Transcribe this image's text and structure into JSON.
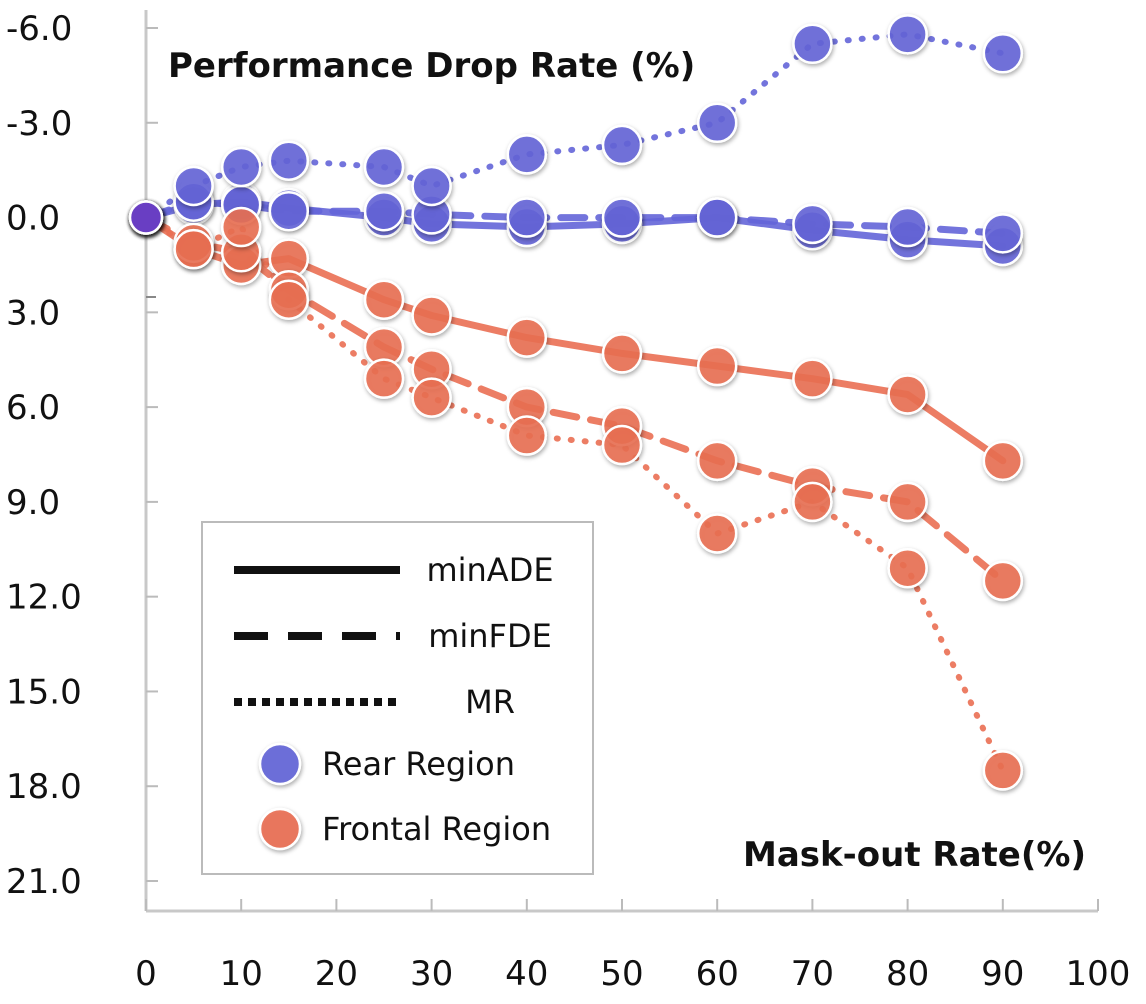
{
  "chart_data": {
    "type": "line",
    "title": "Performance Drop Rate (%)",
    "xlabel": "Mask-out Rate(%)",
    "ylabel": "Performance Drop Rate (%)",
    "xlim": [
      0,
      100
    ],
    "ylim": [
      21.0,
      -6.0
    ],
    "x_ticks": [
      "0",
      "10",
      "20",
      "30",
      "40",
      "50",
      "60",
      "70",
      "80",
      "90",
      "100"
    ],
    "y_ticks": [
      "-6.0",
      "-3.0",
      "0.0",
      "3.0",
      "6.0",
      "9.0",
      "12.0",
      "15.0",
      "18.0",
      "21.0"
    ],
    "x": [
      0,
      5,
      10,
      15,
      25,
      30,
      40,
      50,
      60,
      70,
      80,
      90
    ],
    "series": [
      {
        "name": "Rear Region minADE",
        "region": "Rear Region",
        "metric": "minADE",
        "style": "solid",
        "color": "#6465d8",
        "values": [
          0.0,
          -0.4,
          -0.5,
          -0.3,
          0.0,
          0.2,
          0.3,
          0.2,
          0.0,
          0.4,
          0.7,
          0.9
        ]
      },
      {
        "name": "Rear Region minFDE",
        "region": "Rear Region",
        "metric": "minFDE",
        "style": "dashed",
        "color": "#6465d8",
        "values": [
          0.0,
          -0.5,
          -0.4,
          -0.2,
          -0.2,
          -0.1,
          0.0,
          0.0,
          0.0,
          0.2,
          0.3,
          0.5
        ]
      },
      {
        "name": "Rear Region MR",
        "region": "Rear Region",
        "metric": "MR",
        "style": "dotted",
        "color": "#6465d8",
        "values": [
          0.0,
          -1.0,
          -1.6,
          -1.8,
          -1.6,
          -1.0,
          -2.0,
          -2.3,
          -3.0,
          -5.5,
          -5.8,
          -5.2
        ]
      },
      {
        "name": "Frontal Region minADE",
        "region": "Frontal Region",
        "metric": "minADE",
        "style": "solid",
        "color": "#ea6f53",
        "values": [
          0.0,
          1.0,
          1.5,
          1.3,
          2.6,
          3.1,
          3.8,
          4.3,
          4.7,
          5.1,
          5.6,
          7.7
        ]
      },
      {
        "name": "Frontal Region minFDE",
        "region": "Frontal Region",
        "metric": "minFDE",
        "style": "dashed",
        "color": "#ea6f53",
        "values": [
          0.0,
          0.8,
          1.1,
          2.3,
          4.1,
          4.8,
          6.0,
          6.6,
          7.7,
          8.5,
          9.0,
          11.5
        ]
      },
      {
        "name": "Frontal Region MR",
        "region": "Frontal Region",
        "metric": "MR",
        "style": "dotted",
        "color": "#ea6f53",
        "values": [
          0.0,
          1.0,
          0.3,
          2.6,
          5.1,
          5.7,
          6.9,
          7.2,
          10.0,
          9.0,
          11.1,
          17.5
        ]
      }
    ],
    "legend": {
      "position": "bottom-left",
      "line_entries": [
        {
          "label": "minADE",
          "style": "solid"
        },
        {
          "label": "minFDE",
          "style": "dashed"
        },
        {
          "label": "MR",
          "style": "dotted"
        }
      ],
      "marker_entries": [
        {
          "label": "Rear Region",
          "color": "#6465d8"
        },
        {
          "label": "Frontal Region",
          "color": "#ea6f53"
        }
      ]
    },
    "grid": false
  }
}
